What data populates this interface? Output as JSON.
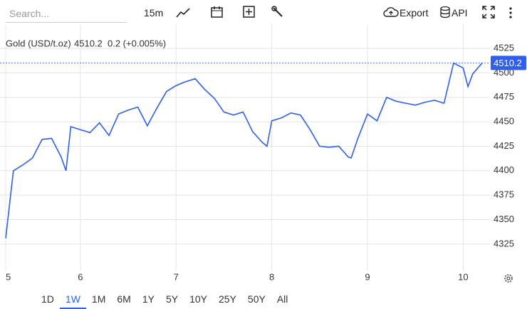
{
  "toolbar": {
    "search_placeholder": "Search...",
    "interval": "15m",
    "export": "Export",
    "api": "API"
  },
  "ranges": {
    "options": [
      "1D",
      "1W",
      "1M",
      "6M",
      "1Y",
      "5Y",
      "10Y",
      "25Y",
      "50Y",
      "All"
    ],
    "selected": "1W"
  },
  "chart_data": {
    "type": "line",
    "last_price": 4510.2,
    "change_label": "0.2 (+0.005%)",
    "x": [
      5.22,
      5.3,
      5.4,
      5.5,
      5.6,
      5.7,
      5.8,
      5.85,
      5.9,
      6.0,
      6.1,
      6.2,
      6.3,
      6.4,
      6.5,
      6.6,
      6.7,
      6.8,
      6.9,
      7.0,
      7.1,
      7.2,
      7.3,
      7.4,
      7.5,
      7.6,
      7.7,
      7.8,
      7.9,
      7.95,
      8.0,
      8.1,
      8.2,
      8.3,
      8.4,
      8.5,
      8.6,
      8.7,
      8.8,
      8.83,
      8.9,
      9.0,
      9.1,
      9.2,
      9.3,
      9.4,
      9.5,
      9.6,
      9.7,
      9.8,
      9.9,
      10.0,
      10.05,
      10.1,
      10.2
    ],
    "series": [
      {
        "name": "Gold (USD/t.oz)",
        "color": "#2f5ff0",
        "values": [
          4331,
          4400,
          4406,
          4413,
          4432,
          4433,
          4414,
          4400,
          4445,
          4442,
          4439,
          4449,
          4436,
          4458,
          4462,
          4465,
          4446,
          4464,
          4481,
          4487,
          4491,
          4494,
          4483,
          4474,
          4460,
          4457,
          4460,
          4440,
          4429,
          4425,
          4451,
          4454,
          4459,
          4457,
          4442,
          4425,
          4424,
          4425,
          4414,
          4413,
          4433,
          4458,
          4451,
          4475,
          4471,
          4469,
          4467,
          4470,
          4472,
          4469,
          4510,
          4505,
          4486,
          4499,
          4510.2
        ]
      }
    ],
    "xlim": [
      5.22,
      10.28
    ],
    "xticks": [
      {
        "value": 5.22,
        "label": "5"
      },
      6,
      7,
      8,
      9,
      10
    ],
    "ylim": [
      4298,
      4549
    ],
    "yticks": [
      4325,
      4350,
      4375,
      4400,
      4425,
      4450,
      4475,
      4500,
      4525
    ],
    "grid": true,
    "change_color": "#22b14c"
  }
}
